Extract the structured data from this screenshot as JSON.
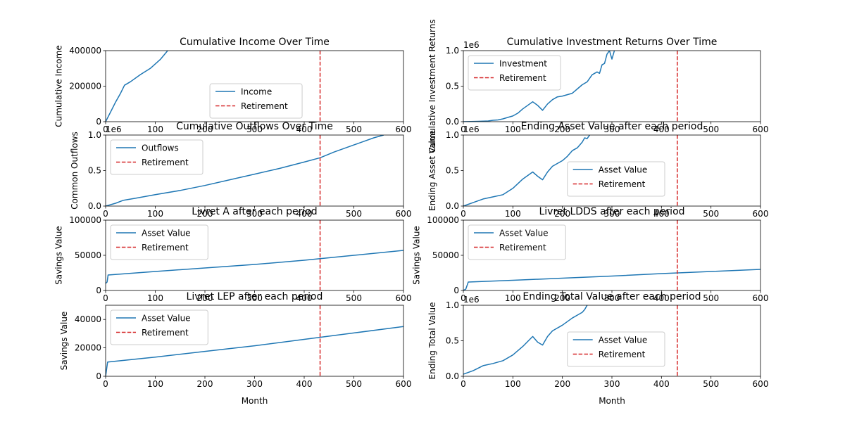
{
  "colors": {
    "series": "#1f77b4",
    "retirement": "#d62728",
    "axis": "#000000",
    "legend_border": "#cccccc"
  },
  "chart_data": [
    {
      "type": "line",
      "title": "Cumulative Income Over Time",
      "xlabel": "",
      "ylabel": "Cumulative Income",
      "xlim": [
        0,
        600
      ],
      "ylim": [
        0,
        400000
      ],
      "xticks": [
        0,
        100,
        200,
        300,
        400,
        500,
        600
      ],
      "yticks": [
        0,
        200000,
        400000
      ],
      "ytick_labels": [
        "0",
        "200000",
        "400000"
      ],
      "offset_text": "",
      "grid": false,
      "legend_placement": "lower-center",
      "retirement_month": 432,
      "series": [
        {
          "name": "Income",
          "x": [
            0,
            10,
            20,
            30,
            38,
            50,
            70,
            90,
            110,
            125
          ],
          "y": [
            0,
            55000,
            110000,
            160000,
            205000,
            225000,
            265000,
            300000,
            350000,
            400000
          ]
        }
      ],
      "retirement_label": "Retirement"
    },
    {
      "type": "line",
      "title": "Cumulative Investment Returns Over Time",
      "xlabel": "",
      "ylabel": "Cumulative Investment Returns",
      "xlim": [
        0,
        600
      ],
      "ylim": [
        0,
        1000000
      ],
      "xticks": [
        0,
        100,
        200,
        300,
        400,
        500,
        600
      ],
      "yticks": [
        0,
        500000,
        1000000
      ],
      "ytick_labels": [
        "0.0",
        "0.5",
        "1.0"
      ],
      "offset_text": "1e6",
      "grid": false,
      "legend_placement": "upper-left",
      "retirement_month": 432,
      "series": [
        {
          "name": "Investment",
          "x": [
            0,
            30,
            50,
            60,
            70,
            80,
            90,
            100,
            110,
            120,
            130,
            140,
            150,
            160,
            170,
            180,
            190,
            200,
            210,
            220,
            230,
            240,
            250,
            260,
            270,
            275,
            280,
            285,
            290,
            295,
            300,
            305
          ],
          "y": [
            0,
            5000,
            10000,
            20000,
            25000,
            40000,
            60000,
            80000,
            120000,
            180000,
            230000,
            280000,
            230000,
            160000,
            250000,
            310000,
            350000,
            360000,
            380000,
            400000,
            460000,
            520000,
            560000,
            660000,
            700000,
            680000,
            800000,
            820000,
            950000,
            1000000,
            880000,
            1000000
          ]
        }
      ],
      "retirement_label": "Retirement"
    },
    {
      "type": "line",
      "title": "Cumulative Outflows Over Time",
      "xlabel": "",
      "ylabel": "Common Outflows",
      "xlim": [
        0,
        600
      ],
      "ylim": [
        0,
        1000000
      ],
      "xticks": [
        0,
        100,
        200,
        300,
        400,
        500,
        600
      ],
      "yticks": [
        0,
        500000,
        1000000
      ],
      "ytick_labels": [
        "0.0",
        "0.5",
        "1.0"
      ],
      "offset_text": "1e6",
      "grid": false,
      "legend_placement": "upper-left",
      "retirement_month": 432,
      "series": [
        {
          "name": "Outflows",
          "x": [
            0,
            20,
            35,
            60,
            100,
            150,
            200,
            250,
            300,
            350,
            400,
            432,
            460,
            500,
            540,
            560
          ],
          "y": [
            0,
            40000,
            80000,
            110000,
            160000,
            220000,
            290000,
            370000,
            450000,
            530000,
            620000,
            680000,
            760000,
            860000,
            960000,
            1000000
          ]
        }
      ],
      "retirement_label": "Retirement"
    },
    {
      "type": "line",
      "title": "Ending Asset Value after each period",
      "xlabel": "",
      "ylabel": "Ending Asset Value",
      "xlim": [
        0,
        600
      ],
      "ylim": [
        0,
        1000000
      ],
      "xticks": [
        0,
        100,
        200,
        300,
        400,
        500,
        600
      ],
      "yticks": [
        0,
        500000,
        1000000
      ],
      "ytick_labels": [
        "0.0",
        "0.5",
        "1.0"
      ],
      "offset_text": "1e6",
      "grid": false,
      "legend_placement": "lower-right",
      "retirement_month": 432,
      "series": [
        {
          "name": "Asset Value",
          "x": [
            0,
            8,
            20,
            40,
            60,
            80,
            100,
            120,
            140,
            150,
            160,
            170,
            180,
            200,
            210,
            220,
            230,
            240,
            245,
            250,
            255
          ],
          "y": [
            0,
            20000,
            50000,
            100000,
            130000,
            160000,
            250000,
            380000,
            480000,
            420000,
            370000,
            480000,
            560000,
            640000,
            700000,
            780000,
            820000,
            900000,
            960000,
            950000,
            1000000
          ]
        }
      ],
      "retirement_label": "Retirement"
    },
    {
      "type": "line",
      "title": "Livret A after each period",
      "xlabel": "",
      "ylabel": "Savings Value",
      "xlim": [
        0,
        600
      ],
      "ylim": [
        0,
        100000
      ],
      "xticks": [
        0,
        100,
        200,
        300,
        400,
        500,
        600
      ],
      "yticks": [
        0,
        50000,
        100000
      ],
      "ytick_labels": [
        "0",
        "50000",
        "100000"
      ],
      "offset_text": "",
      "grid": false,
      "legend_placement": "upper-left",
      "retirement_month": 432,
      "series": [
        {
          "name": "Asset Value",
          "x": [
            0,
            3,
            5,
            100,
            200,
            300,
            400,
            500,
            600
          ],
          "y": [
            10000,
            12000,
            22000,
            27000,
            32000,
            37000,
            43000,
            50000,
            57000
          ]
        }
      ],
      "retirement_label": "Retirement"
    },
    {
      "type": "line",
      "title": "Livret LDDS after each period",
      "xlabel": "",
      "ylabel": "Savings Value",
      "xlim": [
        0,
        600
      ],
      "ylim": [
        0,
        100000
      ],
      "xticks": [
        0,
        100,
        200,
        300,
        400,
        500,
        600
      ],
      "yticks": [
        0,
        50000,
        100000
      ],
      "ytick_labels": [
        "0",
        "50000",
        "100000"
      ],
      "offset_text": "",
      "grid": false,
      "legend_placement": "upper-left",
      "retirement_month": 432,
      "series": [
        {
          "name": "Asset Value",
          "x": [
            0,
            5,
            10,
            100,
            200,
            300,
            400,
            500,
            600
          ],
          "y": [
            0,
            2000,
            12000,
            14500,
            17500,
            20500,
            24000,
            27000,
            30000
          ]
        }
      ],
      "retirement_label": "Retirement"
    },
    {
      "type": "line",
      "title": "Livret LEP after each period",
      "xlabel": "Month",
      "ylabel": "Savings Value",
      "xlim": [
        0,
        600
      ],
      "ylim": [
        0,
        50000
      ],
      "xticks": [
        0,
        100,
        200,
        300,
        400,
        500,
        600
      ],
      "yticks": [
        0,
        20000,
        40000
      ],
      "ytick_labels": [
        "0",
        "20000",
        "40000"
      ],
      "offset_text": "",
      "grid": false,
      "legend_placement": "upper-left",
      "retirement_month": 432,
      "series": [
        {
          "name": "Asset Value",
          "x": [
            0,
            2,
            4,
            100,
            200,
            300,
            400,
            500,
            600
          ],
          "y": [
            0,
            5000,
            10000,
            13500,
            17500,
            21500,
            26000,
            30500,
            35000
          ]
        }
      ],
      "retirement_label": "Retirement"
    },
    {
      "type": "line",
      "title": "Ending Total Value after each period",
      "xlabel": "Month",
      "ylabel": "Ending Total Value",
      "xlim": [
        0,
        600
      ],
      "ylim": [
        0,
        1000000
      ],
      "xticks": [
        0,
        100,
        200,
        300,
        400,
        500,
        600
      ],
      "yticks": [
        0,
        500000,
        1000000
      ],
      "ytick_labels": [
        "0.0",
        "0.5",
        "1.0"
      ],
      "offset_text": "1e6",
      "grid": false,
      "legend_placement": "lower-right",
      "retirement_month": 432,
      "series": [
        {
          "name": "Asset Value",
          "x": [
            0,
            20,
            40,
            60,
            80,
            100,
            120,
            140,
            150,
            160,
            170,
            180,
            200,
            220,
            230,
            240,
            245,
            250
          ],
          "y": [
            30000,
            80000,
            150000,
            180000,
            220000,
            300000,
            420000,
            560000,
            480000,
            440000,
            560000,
            640000,
            720000,
            820000,
            860000,
            900000,
            940000,
            1000000
          ]
        }
      ],
      "retirement_label": "Retirement"
    }
  ]
}
